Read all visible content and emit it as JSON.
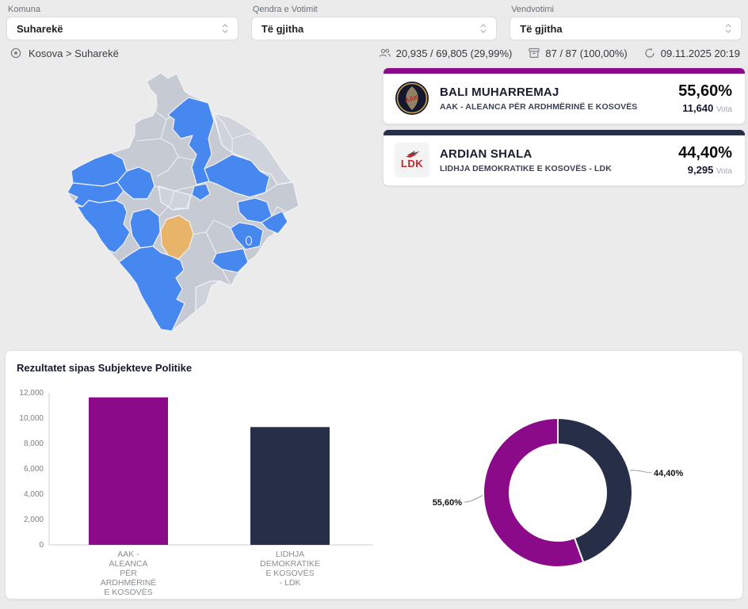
{
  "colors": {
    "purple": "#8A0A8A",
    "navy": "#272E48",
    "map_blue": "#4687F0",
    "map_gray": "#C6CAD3",
    "map_gray2": "#CFD3DB",
    "map_selected": "#E7B469",
    "background": "#EBEBEB"
  },
  "filters": [
    {
      "label": "Komuna",
      "value": "Suharekë"
    },
    {
      "label": "Qendra e Votimit",
      "value": "Të gjitha"
    },
    {
      "label": "Vendvotimi",
      "value": "Të gjitha"
    }
  ],
  "breadcrumb": {
    "text": "Kosova > Suharekë"
  },
  "stats": {
    "turnout": "20,935 / 69,805 (29,99%)",
    "stations": "87 / 87 (100,00%)",
    "updated": "09.11.2025 20:19"
  },
  "candidates": [
    {
      "name": "BALI MUHARREMAJ",
      "party": "AAK - ALEANCA PËR ARDHMËRINË E KOSOVËS",
      "percent": "55,60%",
      "votes": "11,640",
      "votes_label": "Vota",
      "accent": "#8A0A8A",
      "logo_text": "AAK"
    },
    {
      "name": "ARDIAN SHALA",
      "party": "LIDHJA DEMOKRATIKE E KOSOVËS - LDK",
      "percent": "44,40%",
      "votes": "9,295",
      "votes_label": "Vota",
      "accent": "#272E48",
      "logo_text": "LDK"
    }
  ],
  "section": {
    "title": "Rezultatet sipas Subjekteve Politike"
  },
  "chart_data": [
    {
      "type": "bar",
      "title": "Rezultatet sipas Subjekteve Politike",
      "categories": [
        "AAK - ALEANCA PËR ARDHMËRINË E KOSOVËS",
        "LIDHJA DEMOKRATIKE E KOSOVËS - LDK"
      ],
      "category_lines": [
        [
          "AAK -",
          "ALEANCA",
          "PËR",
          "ARDHMËRINË",
          "E KOSOVËS"
        ],
        [
          "LIDHJA",
          "DEMOKRATIKE",
          "E KOSOVËS",
          "- LDK"
        ]
      ],
      "values": [
        11640,
        9295
      ],
      "colors": [
        "#8A0A8A",
        "#272E48"
      ],
      "ylim": [
        0,
        12000
      ],
      "yticks": [
        {
          "v": 0,
          "label": "0"
        },
        {
          "v": 2000,
          "label": "2,000"
        },
        {
          "v": 4000,
          "label": "4,000"
        },
        {
          "v": 6000,
          "label": "6,000"
        },
        {
          "v": 8000,
          "label": "8,000"
        },
        {
          "v": 10000,
          "label": "10,000"
        },
        {
          "v": 12000,
          "label": "12,000"
        }
      ],
      "grid": false,
      "xlabel": "",
      "ylabel": ""
    },
    {
      "type": "donut",
      "labels": [
        "LIDHJA DEMOKRATIKE E KOSOVËS - LDK",
        "AAK - ALEANCA PËR ARDHMËRINË E KOSOVËS"
      ],
      "values": [
        44.4,
        55.6
      ],
      "display": [
        "44,40%",
        "55,60%"
      ],
      "colors": [
        "#272E48",
        "#8A0A8A"
      ],
      "legend": "none"
    }
  ]
}
